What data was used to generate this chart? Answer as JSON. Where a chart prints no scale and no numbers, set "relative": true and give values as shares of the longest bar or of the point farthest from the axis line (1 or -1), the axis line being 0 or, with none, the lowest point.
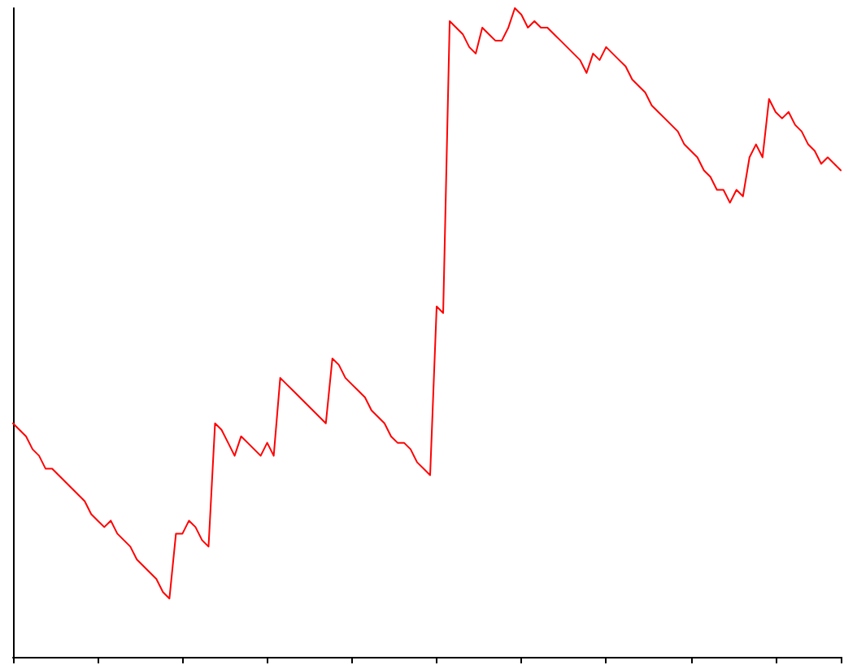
{
  "chart_data": {
    "type": "line",
    "relative": true,
    "color": "#ff0000",
    "line_style": "solid",
    "grid": false,
    "categories": [
      null,
      null,
      null,
      null,
      null,
      null,
      null,
      null,
      null,
      null,
      null,
      null,
      null,
      null,
      null,
      null,
      null,
      null,
      null,
      null,
      null,
      null,
      null,
      null,
      null,
      null,
      null,
      null,
      null,
      null,
      null,
      null,
      null,
      null,
      null,
      null,
      null,
      null,
      null,
      null,
      null,
      null,
      null,
      null,
      null,
      null,
      null,
      null,
      null,
      null,
      null,
      null,
      null,
      null,
      null,
      null,
      null,
      null,
      null,
      null,
      null,
      null,
      null,
      null,
      null,
      null,
      null,
      null,
      null,
      null,
      null,
      null,
      null,
      null,
      null,
      null,
      null,
      null,
      null,
      null,
      null,
      null,
      null,
      null,
      null,
      null,
      null,
      null,
      null,
      null,
      null,
      null,
      null,
      null,
      null,
      null,
      null,
      null,
      null,
      null,
      null,
      null,
      null,
      null,
      null,
      null,
      null,
      null,
      null,
      null,
      null,
      null,
      null,
      null,
      null,
      null,
      null,
      null,
      null,
      null,
      null,
      null,
      null,
      null,
      null,
      null,
      null,
      null
    ],
    "values": [
      0.36,
      0.35,
      0.34,
      0.32,
      0.31,
      0.29,
      0.29,
      0.28,
      0.27,
      0.26,
      0.25,
      0.24,
      0.22,
      0.21,
      0.2,
      0.21,
      0.19,
      0.18,
      0.17,
      0.15,
      0.14,
      0.13,
      0.12,
      0.1,
      0.09,
      0.19,
      0.19,
      0.21,
      0.2,
      0.18,
      0.17,
      0.36,
      0.35,
      0.33,
      0.31,
      0.34,
      0.33,
      0.32,
      0.31,
      0.33,
      0.31,
      0.43,
      0.42,
      0.41,
      0.4,
      0.39,
      0.38,
      0.37,
      0.36,
      0.46,
      0.45,
      0.43,
      0.42,
      0.41,
      0.4,
      0.38,
      0.37,
      0.36,
      0.34,
      0.33,
      0.33,
      0.32,
      0.3,
      0.29,
      0.28,
      0.54,
      0.53,
      0.98,
      0.97,
      0.96,
      0.94,
      0.93,
      0.97,
      0.96,
      0.95,
      0.95,
      0.97,
      1,
      0.99,
      0.97,
      0.98,
      0.97,
      0.97,
      0.96,
      0.95,
      0.94,
      0.93,
      0.92,
      0.9,
      0.93,
      0.92,
      0.94,
      0.93,
      0.92,
      0.91,
      0.89,
      0.88,
      0.87,
      0.85,
      0.84,
      0.83,
      0.82,
      0.81,
      0.79,
      0.78,
      0.77,
      0.75,
      0.74,
      0.72,
      0.72,
      0.7,
      0.72,
      0.71,
      0.77,
      0.79,
      0.77,
      0.86,
      0.84,
      0.83,
      0.84,
      0.82,
      0.81,
      0.79,
      0.78,
      0.76,
      0.77,
      0.76,
      0.75
    ]
  }
}
